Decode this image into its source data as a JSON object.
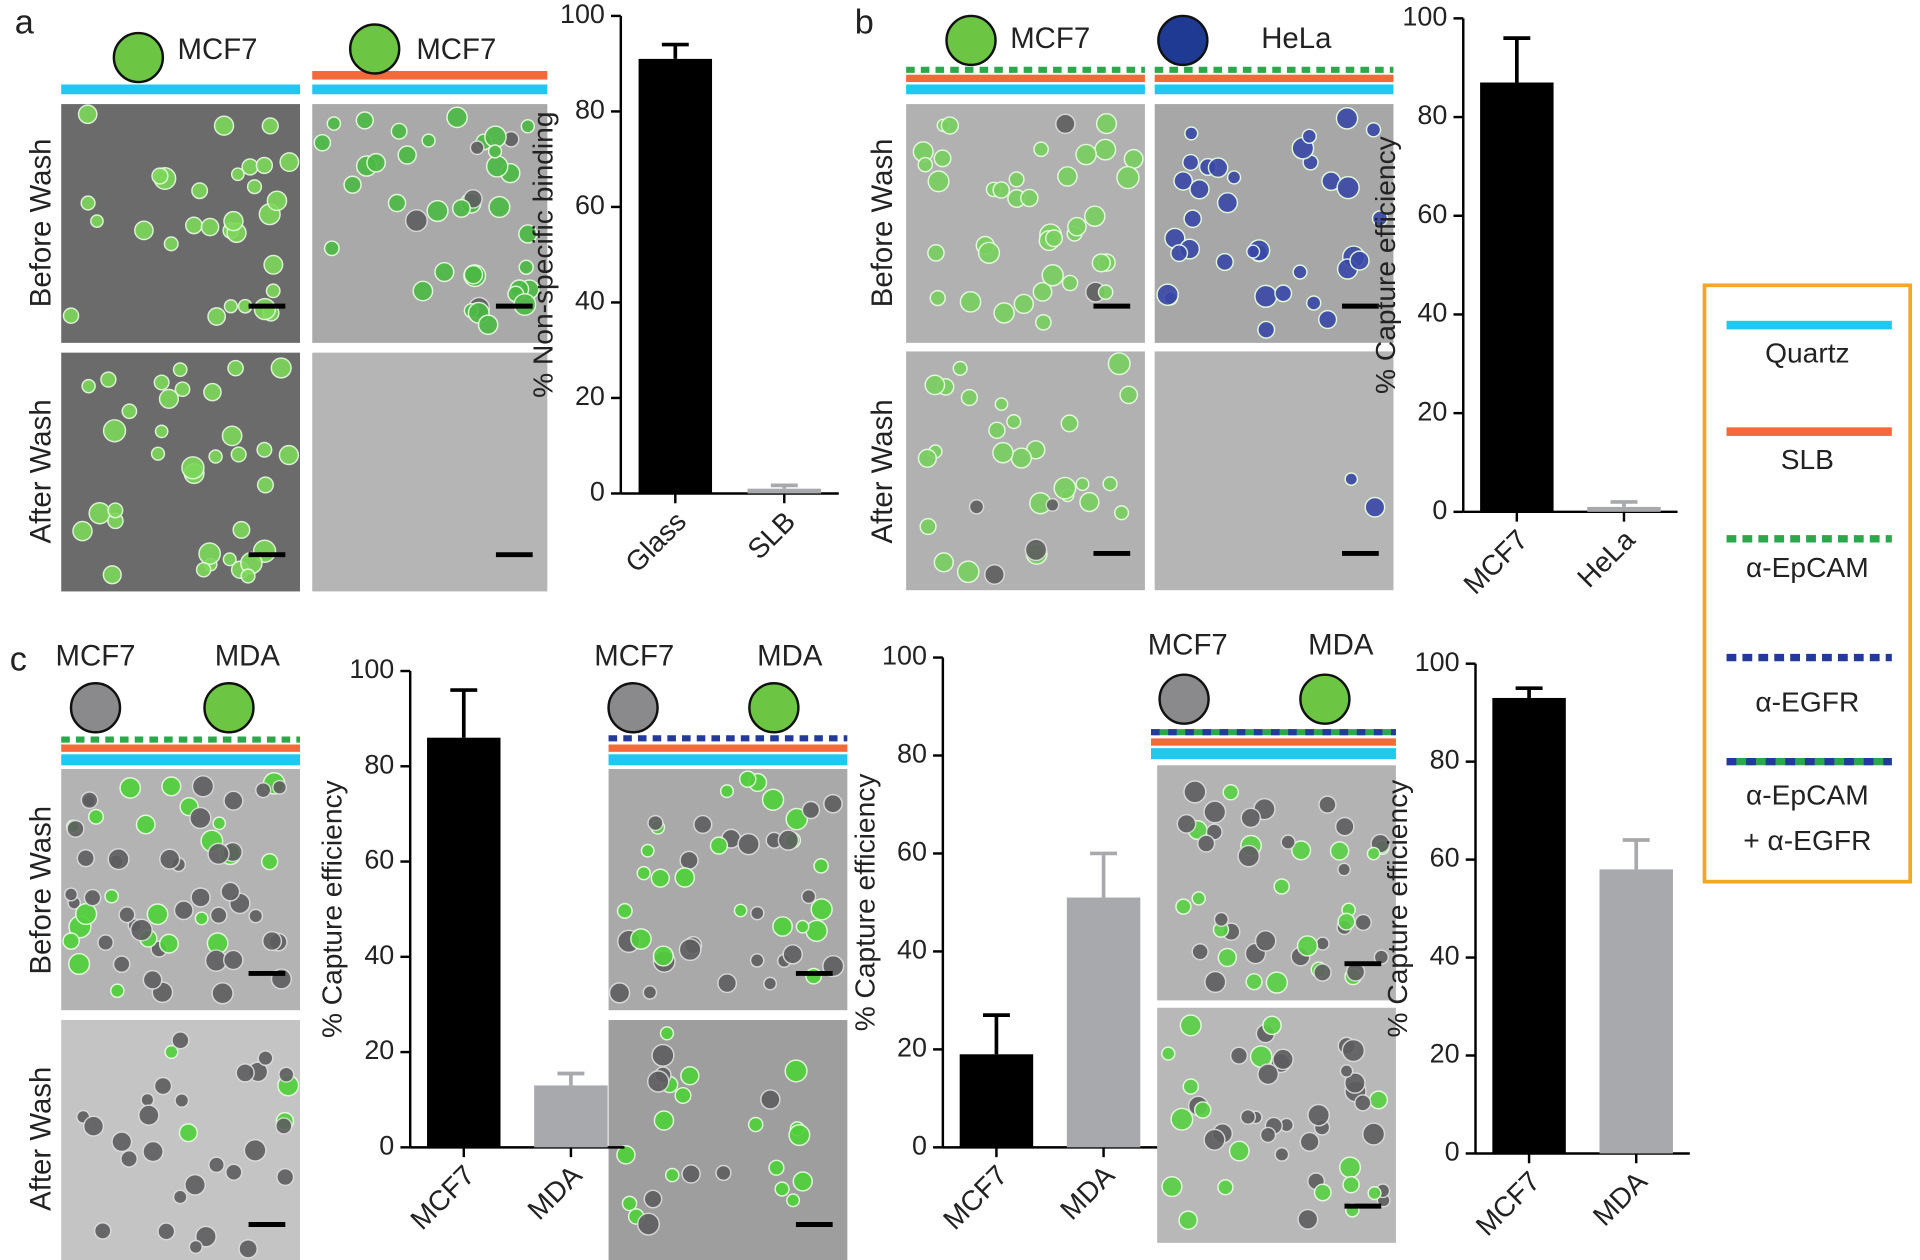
{
  "chart_data": [
    {
      "type": "bar",
      "ylabel": "% Non-specific binding",
      "categories": [
        "Glass",
        "SLB"
      ],
      "values": [
        91,
        1
      ],
      "errors": [
        3,
        0.7
      ],
      "colors": [
        "#000000",
        "#a7a9ac"
      ],
      "ylim": [
        0,
        100
      ],
      "yticks": [
        0,
        20,
        40,
        60,
        80,
        100
      ]
    },
    {
      "type": "bar",
      "ylabel": "% Capture efficiency",
      "categories": [
        "MCF7",
        "HeLa"
      ],
      "values": [
        87,
        1
      ],
      "errors": [
        9,
        1
      ],
      "colors": [
        "#000000",
        "#a7a9ac"
      ],
      "ylim": [
        0,
        100
      ],
      "yticks": [
        0,
        20,
        40,
        60,
        80,
        100
      ]
    },
    {
      "type": "bar",
      "ylabel": "% Capture efficiency",
      "categories": [
        "MCF7",
        "MDA"
      ],
      "values": [
        86,
        13
      ],
      "errors": [
        10,
        2.5
      ],
      "colors": [
        "#000000",
        "#a7a9ac"
      ],
      "ylim": [
        0,
        100
      ],
      "yticks": [
        0,
        20,
        40,
        60,
        80,
        100
      ]
    },
    {
      "type": "bar",
      "ylabel": "% Capture efficiency",
      "categories": [
        "MCF7",
        "MDA"
      ],
      "values": [
        19,
        51
      ],
      "errors": [
        8,
        9
      ],
      "colors": [
        "#000000",
        "#a7a9ac"
      ],
      "ylim": [
        0,
        100
      ],
      "yticks": [
        0,
        20,
        40,
        60,
        80,
        100
      ]
    },
    {
      "type": "bar",
      "ylabel": "% Capture efficiency",
      "categories": [
        "MCF7",
        "MDA"
      ],
      "values": [
        93,
        58
      ],
      "errors": [
        2,
        6
      ],
      "colors": [
        "#000000",
        "#a7a9ac"
      ],
      "ylim": [
        0,
        100
      ],
      "yticks": [
        0,
        20,
        40,
        60,
        80,
        100
      ]
    }
  ],
  "panels": [
    {
      "label": "a",
      "cell_labels": [
        "MCF7",
        "MCF7"
      ],
      "row_labels": [
        "Before Wash",
        "After Wash"
      ]
    },
    {
      "label": "b",
      "cell_labels": [
        "MCF7",
        "HeLa"
      ],
      "row_labels": [
        "Before Wash",
        "After Wash"
      ]
    },
    {
      "label": "c",
      "cell_labels": [
        "MCF7",
        "MDA",
        "MCF7",
        "MDA",
        "MCF7",
        "MDA"
      ],
      "row_labels": [
        "Before Wash",
        "After Wash"
      ]
    }
  ],
  "legend": {
    "items": [
      "Quartz",
      "SLB",
      "α-EpCAM",
      "α-EGFR"
    ],
    "combined": [
      "α-EpCAM",
      "+ α-EGFR"
    ]
  }
}
